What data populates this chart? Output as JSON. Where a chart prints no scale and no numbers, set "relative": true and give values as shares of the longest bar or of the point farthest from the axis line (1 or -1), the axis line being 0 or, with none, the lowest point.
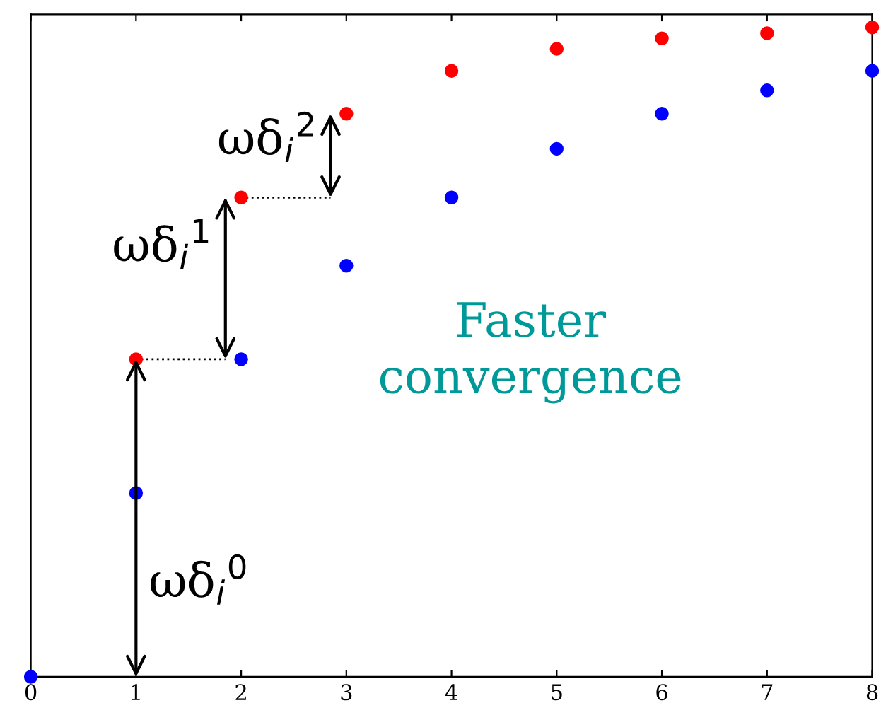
{
  "chart_data": {
    "type": "scatter",
    "relative": true,
    "marker": "circle",
    "tick_labels": "x",
    "x": [
      0,
      1,
      2,
      3,
      4,
      5,
      6,
      7,
      8
    ],
    "xlim": [
      0,
      8
    ],
    "xticks": [
      0,
      1,
      2,
      3,
      4,
      5,
      6,
      7,
      8
    ],
    "series": [
      {
        "color": "#0000ff",
        "values": [
          0,
          0.283,
          0.489,
          0.633,
          0.738,
          0.813,
          0.867,
          0.903,
          0.933
        ]
      },
      {
        "color": "#ff0000",
        "values": [
          null,
          0.489,
          0.738,
          0.867,
          0.933,
          0.967,
          0.983,
          0.991,
          1
        ]
      }
    ],
    "annotations": [
      "ωδ$_{i}$$^{0}$",
      "ωδ$_{i}$$^{1}$",
      "ωδ$_{i}$$^{2}$",
      "Faster\nconvergence"
    ]
  }
}
